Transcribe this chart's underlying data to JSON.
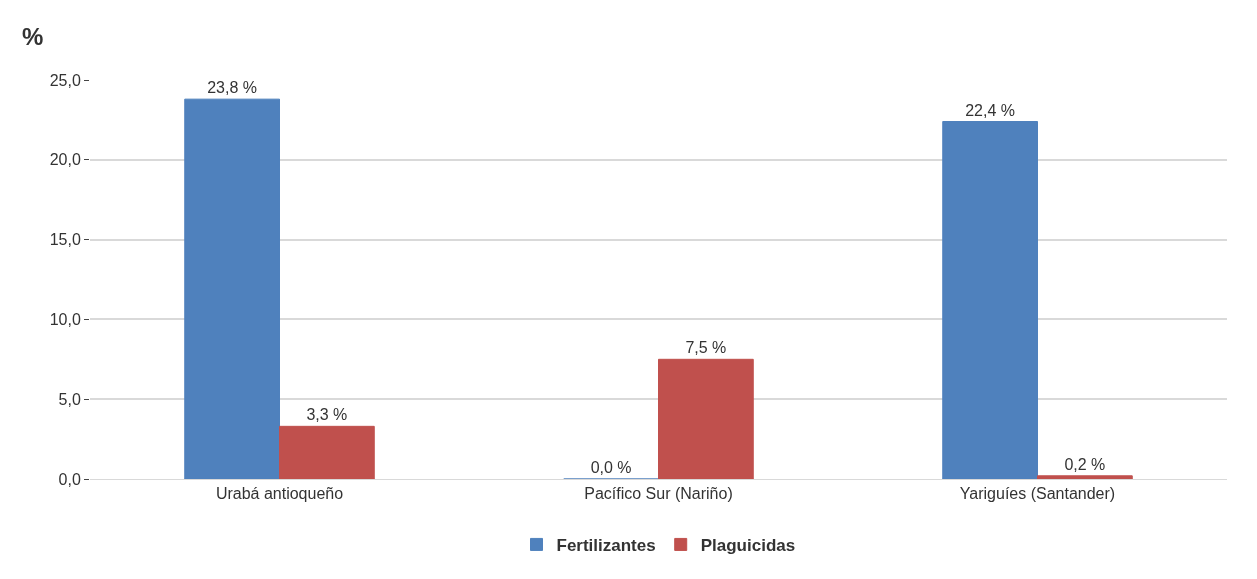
{
  "chart_data": {
    "type": "bar",
    "ylabel": "%",
    "categories": [
      "Urabá antioqueño",
      "Pacífico Sur (Nariño)",
      "Yariguíes (Santander)"
    ],
    "series": [
      {
        "name": "Fertilizantes",
        "color": "#4f81bd",
        "values": [
          23.8,
          0.0,
          22.4
        ],
        "value_labels": [
          "23,8 %",
          "0,0 %",
          "22,4 %"
        ]
      },
      {
        "name": "Plaguicidas",
        "color": "#c0504d",
        "values": [
          3.3,
          7.5,
          0.2
        ],
        "value_labels": [
          "3,3 %",
          "7,5 %",
          "0,2 %"
        ]
      }
    ],
    "ylim": [
      0,
      25
    ],
    "yticks": [
      {
        "value": 0,
        "label": "0,0"
      },
      {
        "value": 5,
        "label": "5,0"
      },
      {
        "value": 10,
        "label": "10,0"
      },
      {
        "value": 15,
        "label": "15,0"
      },
      {
        "value": 20,
        "label": "20,0"
      },
      {
        "value": 25,
        "label": "25,0"
      }
    ],
    "grid": "y",
    "legend": "bottom"
  }
}
